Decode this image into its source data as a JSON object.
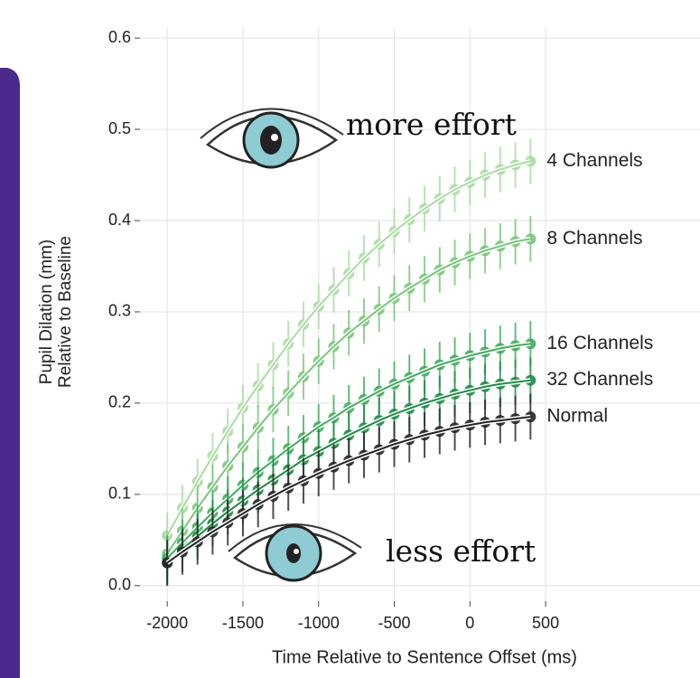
{
  "chart_data": {
    "type": "line",
    "xlabel": "Time Relative to Sentence Offset (ms)",
    "ylabel": [
      "Pupil Dilation (mm)",
      "Relative to Baseline"
    ],
    "annotations": [
      "more effort",
      "less effort"
    ],
    "x": [
      -2000,
      -1900,
      -1800,
      -1700,
      -1600,
      -1500,
      -1400,
      -1300,
      -1200,
      -1100,
      -1000,
      -900,
      -800,
      -700,
      -600,
      -500,
      -400,
      -300,
      -200,
      -100,
      0,
      100,
      200,
      300,
      400
    ],
    "series": [
      {
        "name": "4 Channels",
        "color": "#a8dca2",
        "error": 0.025,
        "values": [
          0.055,
          0.085,
          0.114,
          0.142,
          0.169,
          0.195,
          0.219,
          0.242,
          0.265,
          0.286,
          0.306,
          0.324,
          0.342,
          0.359,
          0.374,
          0.388,
          0.401,
          0.413,
          0.424,
          0.434,
          0.442,
          0.45,
          0.456,
          0.461,
          0.465
        ]
      },
      {
        "name": "8 Channels",
        "color": "#78c679",
        "error": 0.025,
        "values": [
          0.035,
          0.06,
          0.085,
          0.108,
          0.131,
          0.152,
          0.173,
          0.193,
          0.211,
          0.229,
          0.246,
          0.262,
          0.277,
          0.29,
          0.303,
          0.315,
          0.326,
          0.336,
          0.346,
          0.354,
          0.361,
          0.367,
          0.372,
          0.377,
          0.38
        ]
      },
      {
        "name": "16 Channels",
        "color": "#41ab5d",
        "error": 0.025,
        "values": [
          0.03,
          0.047,
          0.064,
          0.08,
          0.095,
          0.11,
          0.124,
          0.137,
          0.15,
          0.162,
          0.174,
          0.184,
          0.195,
          0.204,
          0.213,
          0.221,
          0.228,
          0.235,
          0.242,
          0.247,
          0.252,
          0.256,
          0.26,
          0.263,
          0.265
        ]
      },
      {
        "name": "32 Channels",
        "color": "#1f8a45",
        "error": 0.025,
        "values": [
          0.025,
          0.04,
          0.054,
          0.068,
          0.081,
          0.093,
          0.105,
          0.116,
          0.127,
          0.138,
          0.147,
          0.156,
          0.165,
          0.173,
          0.181,
          0.188,
          0.194,
          0.2,
          0.205,
          0.21,
          0.214,
          0.218,
          0.221,
          0.223,
          0.225
        ]
      },
      {
        "name": "Normal",
        "color": "#252525",
        "error": 0.025,
        "values": [
          0.025,
          0.037,
          0.048,
          0.059,
          0.069,
          0.079,
          0.089,
          0.098,
          0.107,
          0.115,
          0.123,
          0.13,
          0.137,
          0.143,
          0.149,
          0.155,
          0.16,
          0.165,
          0.169,
          0.173,
          0.176,
          0.179,
          0.181,
          0.183,
          0.185
        ]
      }
    ],
    "xlim": [
      -2180,
      1520
    ],
    "ylim": [
      -0.017,
      0.612
    ],
    "xticks": [
      -2000,
      -1500,
      -1000,
      -500,
      0,
      500
    ],
    "yticks": [
      {
        "value": 0,
        "label": "0.0"
      },
      0.1,
      0.2,
      0.3,
      0.4,
      0.5,
      0.6
    ],
    "grid": true
  }
}
